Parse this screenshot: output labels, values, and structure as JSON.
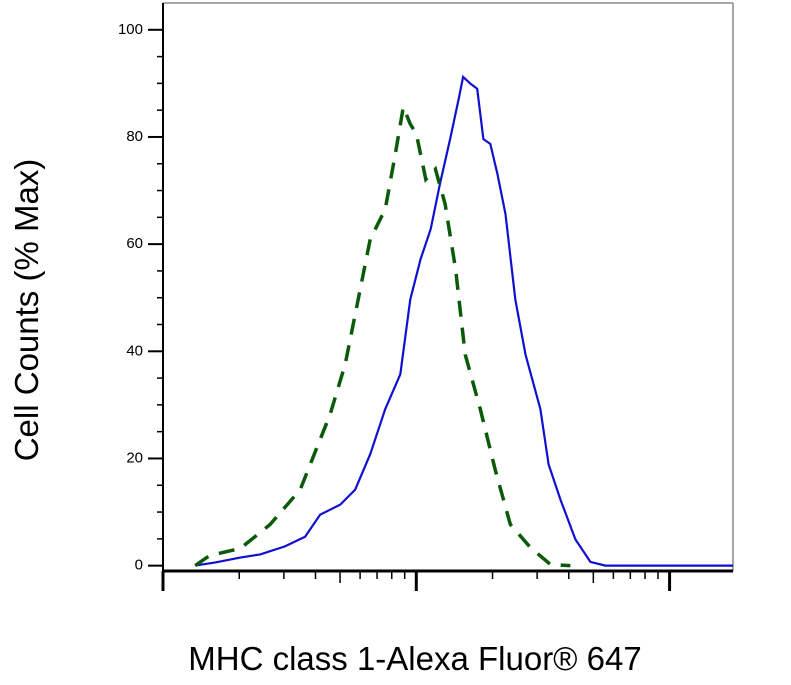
{
  "chart_data": {
    "type": "line",
    "x_label": "MHC class 1-Alexa Fluor® 647",
    "y_label": "Cell Counts (% Max)",
    "log_x": true,
    "xlim": [
      1,
      178
    ],
    "xticks": [
      1,
      10,
      100
    ],
    "ylim": [
      -1,
      105
    ],
    "yticks": [
      0,
      20,
      40,
      60,
      80,
      100
    ],
    "series": [
      {
        "color": "#1010d0",
        "dash": false,
        "x": [
          1.34,
          1.61,
          2.02,
          2.42,
          3.03,
          3.64,
          4.17,
          5.01,
          5.74,
          6.58,
          7.54,
          8.65,
          9.47,
          10.4,
          11.4,
          12.4,
          13.6,
          14.7,
          15.3,
          16.4,
          17.4,
          18.4,
          19.6,
          20.9,
          22.5,
          24.6,
          27.0,
          30.9,
          33.3,
          37.1,
          42.5,
          48.7,
          55.8,
          84.1,
          178
        ],
        "values": [
          0,
          0.6,
          1.5,
          2.1,
          3.6,
          5.4,
          9.5,
          11.4,
          14.2,
          20.8,
          29.2,
          35.7,
          49.7,
          57.2,
          62.8,
          71.2,
          79.6,
          87.1,
          91.2,
          89.9,
          89.0,
          79.6,
          78.7,
          73.1,
          65.6,
          49.7,
          39.4,
          29.2,
          18.9,
          12.3,
          4.9,
          0.7,
          0,
          0,
          0
        ]
      },
      {
        "color": "#0a5a0a",
        "dash": true,
        "x": [
          1.34,
          1.53,
          2.02,
          2.65,
          3.48,
          4.57,
          5.24,
          5.74,
          6.58,
          7.54,
          8.26,
          8.89,
          9.47,
          10.0,
          10.9,
          11.9,
          13.0,
          14.3,
          15.6,
          17.9,
          20.5,
          23.5,
          28.2,
          33.9,
          40.6
        ],
        "values": [
          0,
          1.9,
          3.2,
          7.7,
          14.2,
          28.2,
          37.6,
          46.9,
          60.9,
          66.5,
          76.8,
          85.6,
          82.4,
          80.6,
          72.1,
          74.0,
          67.5,
          55.3,
          39.4,
          29.2,
          17.9,
          7.7,
          3.4,
          0.2,
          0
        ]
      }
    ]
  }
}
